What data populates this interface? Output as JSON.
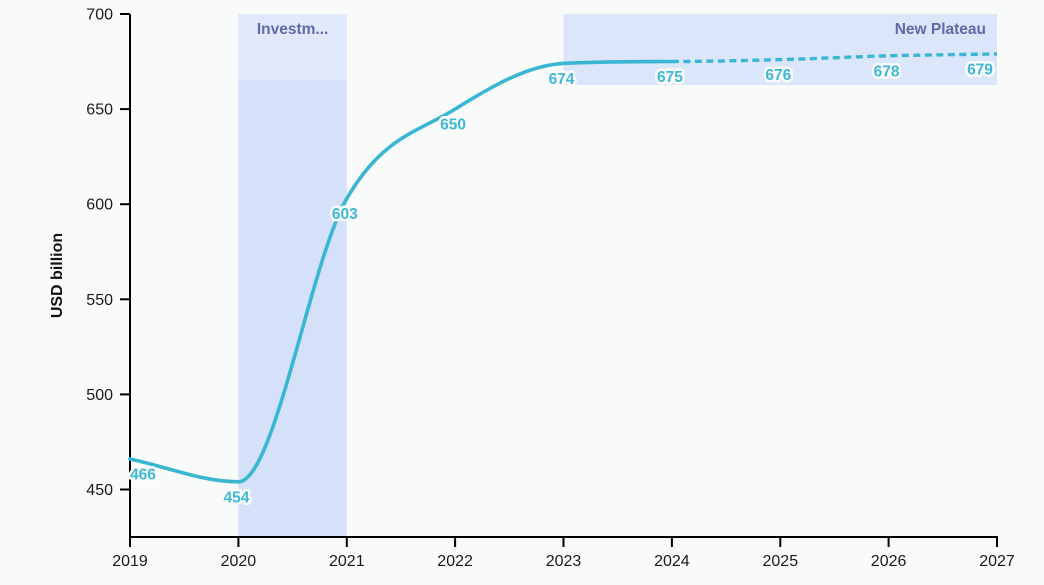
{
  "chart_data": {
    "type": "line",
    "title": "",
    "xlabel": "",
    "ylabel": "USD billion",
    "x": [
      2019,
      2020,
      2021,
      2022,
      2023,
      2024,
      2025,
      2026,
      2027
    ],
    "values": [
      466,
      454,
      603,
      650,
      674,
      675,
      676,
      678,
      679
    ],
    "data_labels": [
      "466",
      "454",
      "603",
      "650",
      "674",
      "675",
      "676",
      "678",
      "679"
    ],
    "yticks": [
      450,
      500,
      550,
      600,
      650,
      700
    ],
    "ytick_labels": [
      "450",
      "500",
      "550",
      "600",
      "650",
      "700"
    ],
    "xtick_labels": [
      "2019",
      "2020",
      "2021",
      "2022",
      "2023",
      "2024",
      "2025",
      "2026",
      "2027"
    ],
    "ylim": [
      425,
      700
    ],
    "grid": false,
    "legend": null,
    "line_style": {
      "solid_range": [
        2019,
        2024
      ],
      "dashed_range": [
        2024,
        2027
      ]
    },
    "regions": [
      {
        "kind": "vrect",
        "label": "Investm...",
        "x0": 2020,
        "x1": 2021
      },
      {
        "kind": "top_band",
        "label": "New Plateau",
        "x0": 2023,
        "x1": 2027
      }
    ],
    "colors": {
      "line": "#39b7d2",
      "data_label": "#3cb9d5",
      "vrect_fill": "#d5e1f9",
      "vrect_label_strip": "#e1eafc",
      "top_band_fill": "#dbe6fa",
      "region_label_text": "#6468a5",
      "axis": "#000000",
      "tick_label": "#1a1a1a",
      "axis_title": "#111111",
      "background": "#f9fafa",
      "label_halo": "#fbfbfb"
    }
  }
}
